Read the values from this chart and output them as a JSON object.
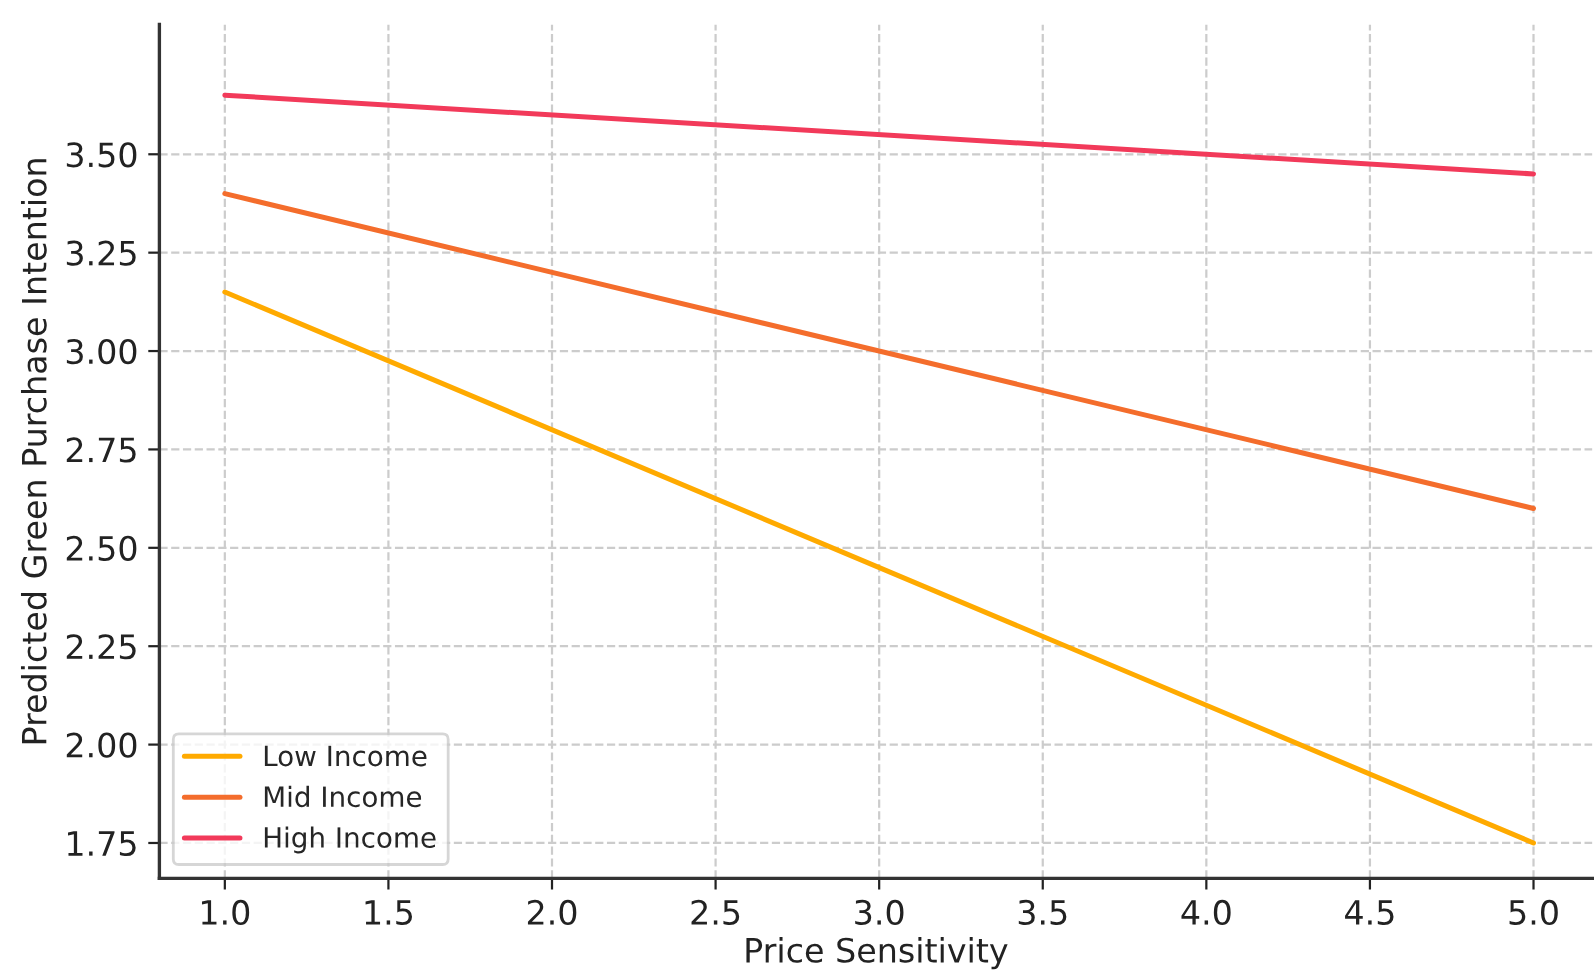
{
  "chart_data": {
    "type": "line",
    "xlabel": "Price Sensitivity",
    "ylabel": "Predicted Green Purchase Intention",
    "x": [
      1.0,
      5.0
    ],
    "series": [
      {
        "name": "Low Income",
        "color": "#ffaa00",
        "values": [
          3.15,
          1.75
        ]
      },
      {
        "name": "Mid Income",
        "color": "#f46d2c",
        "values": [
          3.4,
          2.6
        ]
      },
      {
        "name": "High Income",
        "color": "#f23a5a",
        "values": [
          3.65,
          3.45
        ]
      }
    ],
    "xlim": [
      0.8,
      5.18
    ],
    "xticks": [
      {
        "value": 1.0,
        "label": "1.0"
      },
      {
        "value": 1.5,
        "label": "1.5"
      },
      {
        "value": 2.0,
        "label": "2.0"
      },
      {
        "value": 2.5,
        "label": "2.5"
      },
      {
        "value": 3.0,
        "label": "3.0"
      },
      {
        "value": 3.5,
        "label": "3.5"
      },
      {
        "value": 4.0,
        "label": "4.0"
      },
      {
        "value": 4.5,
        "label": "4.5"
      },
      {
        "value": 5.0,
        "label": "5.0"
      }
    ],
    "ylim": [
      1.66,
      3.83
    ],
    "yticks": [
      {
        "value": 1.75,
        "label": "1.75"
      },
      {
        "value": 2.0,
        "label": "2.00"
      },
      {
        "value": 2.25,
        "label": "2.25"
      },
      {
        "value": 2.5,
        "label": "2.50"
      },
      {
        "value": 2.75,
        "label": "2.75"
      },
      {
        "value": 3.0,
        "label": "3.00"
      },
      {
        "value": 3.25,
        "label": "3.25"
      },
      {
        "value": 3.5,
        "label": "3.50"
      }
    ],
    "grid": true,
    "legend": "bottom left",
    "line_style": "solid",
    "marker": "none"
  }
}
